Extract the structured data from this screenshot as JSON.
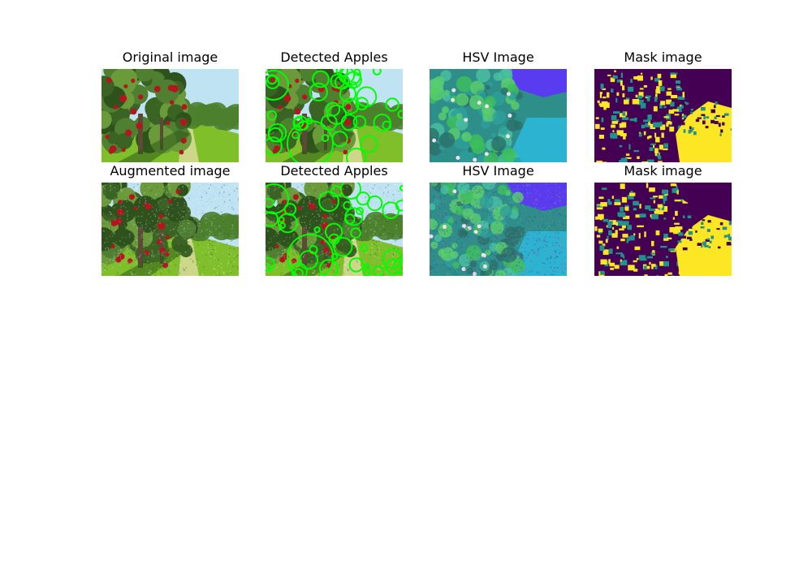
{
  "figure": {
    "rows": [
      {
        "panels": [
          {
            "title": "Original image",
            "kind": "orchard",
            "variant": "original"
          },
          {
            "title": "Detected Apples",
            "kind": "detected",
            "variant": "original"
          },
          {
            "title": "HSV Image",
            "kind": "hsv",
            "variant": "original"
          },
          {
            "title": "Mask image",
            "kind": "mask",
            "variant": "original"
          }
        ]
      },
      {
        "panels": [
          {
            "title": "Augmented image",
            "kind": "orchard",
            "variant": "augmented"
          },
          {
            "title": "Detected Apples",
            "kind": "detected",
            "variant": "augmented"
          },
          {
            "title": "HSV Image",
            "kind": "hsv",
            "variant": "augmented"
          },
          {
            "title": "Mask image",
            "kind": "mask",
            "variant": "augmented"
          }
        ]
      }
    ],
    "colors": {
      "sky": "#bfe3f2",
      "grass": "#7fbf2a",
      "foliage": "#3f6a25",
      "apple_red": "#b3161f",
      "circle_green": "#00ff00",
      "hsv_cyan": "#2bb3cf",
      "hsv_purple": "#5a3cf0",
      "mask_yellow": "#fde725",
      "mask_purple": "#440154",
      "mask_teal": "#21918c"
    }
  }
}
